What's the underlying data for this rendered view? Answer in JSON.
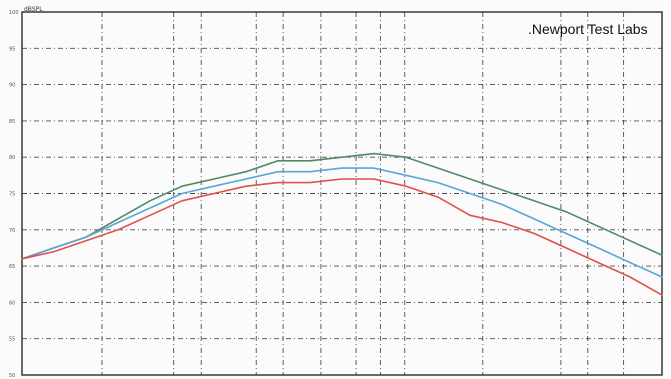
{
  "lab_label": ".Newport Test Labs",
  "axis_caption": "dBSPL",
  "colors": {
    "green": "#4f8a64",
    "blue": "#5aa5d8",
    "red": "#e0504c",
    "grid": "#2f2f2f",
    "background": "#fbfbfb"
  },
  "chart_data": {
    "type": "line",
    "title": "",
    "xlabel": "",
    "ylabel": "dBSPL",
    "xlim": [
      0,
      20
    ],
    "ylim": [
      50,
      100
    ],
    "y_ticks": [
      100,
      95,
      90,
      85,
      80,
      75,
      70,
      65,
      60,
      55,
      50
    ],
    "grid": true,
    "x": [
      0,
      1,
      2,
      3,
      4,
      5,
      6,
      7,
      8,
      9,
      10,
      11,
      12,
      13,
      14,
      15,
      16,
      17,
      18,
      19,
      20
    ],
    "series": [
      {
        "color": "green",
        "values": [
          66.0,
          67.5,
          69.0,
          71.5,
          74.0,
          76.0,
          77.0,
          78.0,
          79.5,
          79.5,
          80.0,
          80.5,
          80.0,
          78.5,
          77.0,
          75.5,
          74.0,
          72.5,
          70.5,
          68.5,
          66.5
        ]
      },
      {
        "color": "blue",
        "values": [
          66.0,
          67.5,
          69.0,
          71.0,
          73.0,
          75.0,
          76.0,
          77.0,
          78.0,
          78.0,
          78.5,
          78.5,
          77.5,
          76.5,
          75.0,
          73.5,
          71.5,
          69.5,
          67.5,
          65.5,
          63.5
        ]
      },
      {
        "color": "red",
        "values": [
          66.0,
          67.0,
          68.5,
          70.0,
          72.0,
          74.0,
          75.0,
          76.0,
          76.5,
          76.5,
          77.0,
          77.0,
          76.0,
          74.5,
          72.0,
          71.0,
          69.5,
          67.5,
          65.5,
          63.5,
          61.0
        ]
      }
    ]
  }
}
